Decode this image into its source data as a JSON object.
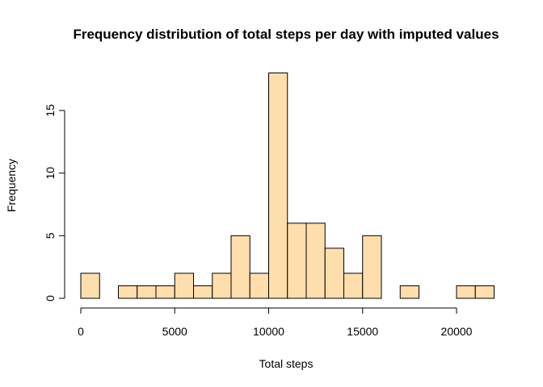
{
  "chart_data": {
    "type": "bar",
    "title": "Frequency distribution of total steps per day with imputed values",
    "xlabel": "Total steps",
    "ylabel": "Frequency",
    "bin_width": 1000,
    "bins": [
      {
        "start": 0,
        "end": 1000,
        "count": 2
      },
      {
        "start": 1000,
        "end": 2000,
        "count": 0
      },
      {
        "start": 2000,
        "end": 3000,
        "count": 1
      },
      {
        "start": 3000,
        "end": 4000,
        "count": 1
      },
      {
        "start": 4000,
        "end": 5000,
        "count": 1
      },
      {
        "start": 5000,
        "end": 6000,
        "count": 2
      },
      {
        "start": 6000,
        "end": 7000,
        "count": 1
      },
      {
        "start": 7000,
        "end": 8000,
        "count": 2
      },
      {
        "start": 8000,
        "end": 9000,
        "count": 5
      },
      {
        "start": 9000,
        "end": 10000,
        "count": 2
      },
      {
        "start": 10000,
        "end": 11000,
        "count": 18
      },
      {
        "start": 11000,
        "end": 12000,
        "count": 6
      },
      {
        "start": 12000,
        "end": 13000,
        "count": 6
      },
      {
        "start": 13000,
        "end": 14000,
        "count": 4
      },
      {
        "start": 14000,
        "end": 15000,
        "count": 2
      },
      {
        "start": 15000,
        "end": 16000,
        "count": 5
      },
      {
        "start": 16000,
        "end": 17000,
        "count": 0
      },
      {
        "start": 17000,
        "end": 18000,
        "count": 1
      },
      {
        "start": 18000,
        "end": 19000,
        "count": 0
      },
      {
        "start": 19000,
        "end": 20000,
        "count": 0
      },
      {
        "start": 20000,
        "end": 21000,
        "count": 1
      },
      {
        "start": 21000,
        "end": 22000,
        "count": 1
      }
    ],
    "xlim": [
      0,
      22000
    ],
    "ylim": [
      0,
      18
    ],
    "x_ticks": [
      0,
      5000,
      10000,
      15000,
      20000
    ],
    "y_ticks": [
      0,
      5,
      10,
      15
    ],
    "bar_color": "#ffdead",
    "bar_border": "#000000",
    "grid": false,
    "legend": "none"
  }
}
